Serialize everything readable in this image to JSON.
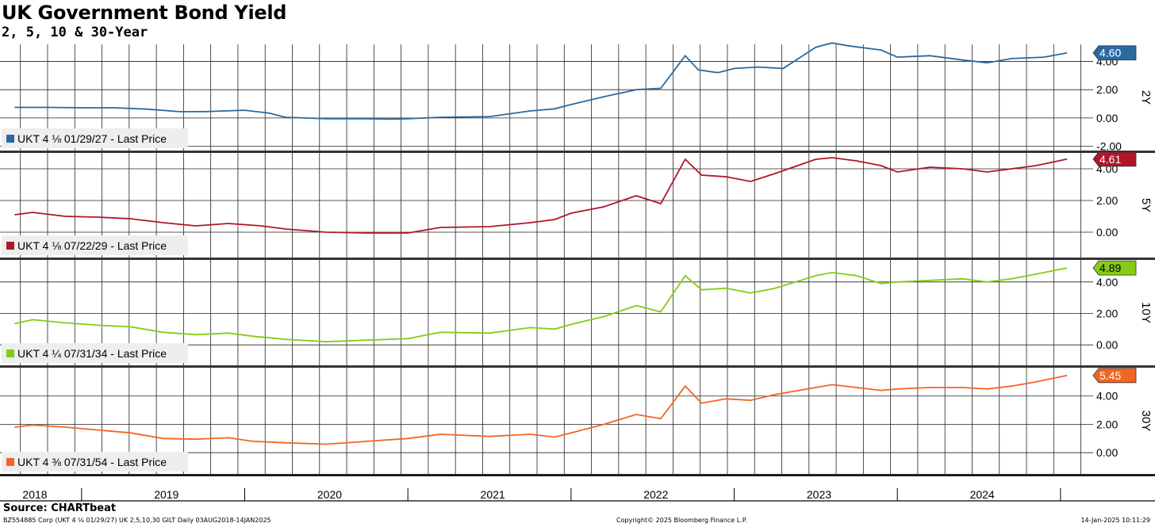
{
  "title": "UK Government Bond Yield",
  "subtitle": "2, 5, 10 & 30-Year",
  "source": "Source: CHARTbeat",
  "footer": {
    "left": "BZ554885 Corp (UKT 4 ⅛ 01/29/27) UK 2,5,10,30 GILT  Daily 03AUG2018-14JAN2025",
    "center": "Copyright© 2025 Bloomberg Finance L.P.",
    "right": "14-Jan-2025 10:11:29"
  },
  "chart_data": [
    {
      "type": "line",
      "tenor_label": "2Y",
      "legend": "UKT 4 ⅛ 01/29/27 - Last Price",
      "color": "#2a6aa0",
      "last_value": 4.6,
      "last_label": "4.60",
      "ylim": [
        -2.3,
        5.2
      ],
      "yticks": [
        -2.0,
        0.0,
        2.0,
        4.0
      ],
      "ytick_labels": [
        "-2.00",
        "0.00",
        "2.00",
        "4.00"
      ],
      "points": [
        [
          2018.59,
          0.75
        ],
        [
          2018.8,
          0.75
        ],
        [
          2019.0,
          0.72
        ],
        [
          2019.2,
          0.72
        ],
        [
          2019.4,
          0.63
        ],
        [
          2019.6,
          0.45
        ],
        [
          2019.75,
          0.45
        ],
        [
          2020.0,
          0.55
        ],
        [
          2020.15,
          0.35
        ],
        [
          2020.25,
          0.05
        ],
        [
          2020.5,
          -0.05
        ],
        [
          2020.75,
          -0.05
        ],
        [
          2020.9,
          -0.08
        ],
        [
          2021.0,
          -0.05
        ],
        [
          2021.2,
          0.05
        ],
        [
          2021.5,
          0.1
        ],
        [
          2021.75,
          0.5
        ],
        [
          2021.9,
          0.65
        ],
        [
          2022.0,
          0.95
        ],
        [
          2022.2,
          1.5
        ],
        [
          2022.4,
          2.0
        ],
        [
          2022.55,
          2.1
        ],
        [
          2022.7,
          4.4
        ],
        [
          2022.78,
          3.4
        ],
        [
          2022.9,
          3.2
        ],
        [
          2023.0,
          3.5
        ],
        [
          2023.15,
          3.6
        ],
        [
          2023.3,
          3.5
        ],
        [
          2023.5,
          5.0
        ],
        [
          2023.6,
          5.3
        ],
        [
          2023.7,
          5.1
        ],
        [
          2023.9,
          4.8
        ],
        [
          2024.0,
          4.3
        ],
        [
          2024.2,
          4.4
        ],
        [
          2024.4,
          4.1
        ],
        [
          2024.55,
          3.9
        ],
        [
          2024.7,
          4.2
        ],
        [
          2024.9,
          4.3
        ],
        [
          2025.04,
          4.6
        ]
      ]
    },
    {
      "type": "line",
      "tenor_label": "5Y",
      "legend": "UKT 4 ⅛ 07/22/29 - Last Price",
      "color": "#b0162a",
      "last_value": 4.61,
      "last_label": "4.61",
      "ylim": [
        -1.6,
        5.0
      ],
      "yticks": [
        0.0,
        2.0,
        4.0
      ],
      "ytick_labels": [
        "0.00",
        "2.00",
        "4.00"
      ],
      "points": [
        [
          2018.59,
          1.1
        ],
        [
          2018.7,
          1.25
        ],
        [
          2018.9,
          1.0
        ],
        [
          2019.1,
          0.95
        ],
        [
          2019.3,
          0.85
        ],
        [
          2019.5,
          0.6
        ],
        [
          2019.7,
          0.4
        ],
        [
          2019.9,
          0.55
        ],
        [
          2020.1,
          0.4
        ],
        [
          2020.25,
          0.2
        ],
        [
          2020.5,
          0.0
        ],
        [
          2020.75,
          -0.05
        ],
        [
          2021.0,
          -0.05
        ],
        [
          2021.2,
          0.3
        ],
        [
          2021.5,
          0.35
        ],
        [
          2021.75,
          0.6
        ],
        [
          2021.9,
          0.8
        ],
        [
          2022.0,
          1.2
        ],
        [
          2022.2,
          1.6
        ],
        [
          2022.4,
          2.3
        ],
        [
          2022.55,
          1.8
        ],
        [
          2022.7,
          4.6
        ],
        [
          2022.8,
          3.6
        ],
        [
          2022.95,
          3.5
        ],
        [
          2023.1,
          3.2
        ],
        [
          2023.25,
          3.7
        ],
        [
          2023.5,
          4.6
        ],
        [
          2023.6,
          4.7
        ],
        [
          2023.75,
          4.5
        ],
        [
          2023.9,
          4.2
        ],
        [
          2024.0,
          3.8
        ],
        [
          2024.2,
          4.1
        ],
        [
          2024.4,
          4.0
        ],
        [
          2024.55,
          3.8
        ],
        [
          2024.7,
          4.0
        ],
        [
          2024.85,
          4.2
        ],
        [
          2025.04,
          4.61
        ]
      ]
    },
    {
      "type": "line",
      "tenor_label": "10Y",
      "legend": "UKT 4 ¼ 07/31/34 - Last Price",
      "color": "#84cc16",
      "last_value": 4.89,
      "last_label": "4.89",
      "ylim": [
        -1.3,
        5.4
      ],
      "yticks": [
        0.0,
        2.0,
        4.0
      ],
      "ytick_labels": [
        "0.00",
        "2.00",
        "4.00"
      ],
      "points": [
        [
          2018.59,
          1.35
        ],
        [
          2018.7,
          1.6
        ],
        [
          2018.9,
          1.4
        ],
        [
          2019.1,
          1.25
        ],
        [
          2019.3,
          1.15
        ],
        [
          2019.5,
          0.8
        ],
        [
          2019.7,
          0.65
        ],
        [
          2019.9,
          0.75
        ],
        [
          2020.05,
          0.55
        ],
        [
          2020.25,
          0.35
        ],
        [
          2020.5,
          0.2
        ],
        [
          2020.75,
          0.3
        ],
        [
          2021.0,
          0.4
        ],
        [
          2021.2,
          0.8
        ],
        [
          2021.5,
          0.75
        ],
        [
          2021.75,
          1.1
        ],
        [
          2021.9,
          1.0
        ],
        [
          2022.0,
          1.3
        ],
        [
          2022.2,
          1.8
        ],
        [
          2022.4,
          2.5
        ],
        [
          2022.55,
          2.1
        ],
        [
          2022.7,
          4.4
        ],
        [
          2022.8,
          3.5
        ],
        [
          2022.95,
          3.6
        ],
        [
          2023.1,
          3.3
        ],
        [
          2023.25,
          3.6
        ],
        [
          2023.5,
          4.4
        ],
        [
          2023.6,
          4.6
        ],
        [
          2023.75,
          4.4
        ],
        [
          2023.9,
          3.9
        ],
        [
          2024.0,
          4.0
        ],
        [
          2024.2,
          4.1
        ],
        [
          2024.4,
          4.2
        ],
        [
          2024.55,
          4.0
        ],
        [
          2024.7,
          4.2
        ],
        [
          2024.85,
          4.5
        ],
        [
          2025.04,
          4.89
        ]
      ]
    },
    {
      "type": "line",
      "tenor_label": "30Y",
      "legend": "UKT 4 ⅜ 07/31/54 - Last Price",
      "color": "#f26522",
      "last_value": 5.45,
      "last_label": "5.45",
      "ylim": [
        -1.5,
        6.0
      ],
      "yticks": [
        0.0,
        2.0,
        4.0
      ],
      "ytick_labels": [
        "0.00",
        "2.00",
        "4.00"
      ],
      "points": [
        [
          2018.59,
          1.8
        ],
        [
          2018.7,
          1.95
        ],
        [
          2018.9,
          1.8
        ],
        [
          2019.1,
          1.6
        ],
        [
          2019.3,
          1.4
        ],
        [
          2019.5,
          1.0
        ],
        [
          2019.7,
          0.95
        ],
        [
          2019.9,
          1.05
        ],
        [
          2020.05,
          0.8
        ],
        [
          2020.25,
          0.7
        ],
        [
          2020.5,
          0.6
        ],
        [
          2020.75,
          0.8
        ],
        [
          2021.0,
          1.0
        ],
        [
          2021.2,
          1.3
        ],
        [
          2021.5,
          1.15
        ],
        [
          2021.75,
          1.3
        ],
        [
          2021.9,
          1.1
        ],
        [
          2022.0,
          1.4
        ],
        [
          2022.2,
          2.0
        ],
        [
          2022.4,
          2.7
        ],
        [
          2022.55,
          2.4
        ],
        [
          2022.7,
          4.7
        ],
        [
          2022.8,
          3.5
        ],
        [
          2022.95,
          3.8
        ],
        [
          2023.1,
          3.7
        ],
        [
          2023.25,
          4.1
        ],
        [
          2023.5,
          4.6
        ],
        [
          2023.6,
          4.8
        ],
        [
          2023.75,
          4.6
        ],
        [
          2023.9,
          4.4
        ],
        [
          2024.0,
          4.5
        ],
        [
          2024.2,
          4.6
        ],
        [
          2024.4,
          4.6
        ],
        [
          2024.55,
          4.5
        ],
        [
          2024.7,
          4.7
        ],
        [
          2024.85,
          5.0
        ],
        [
          2025.04,
          5.45
        ]
      ]
    }
  ],
  "x_axis": {
    "labels": [
      {
        "label": "2018",
        "at": 2018.5
      },
      {
        "label": "2019",
        "at": 2019.5
      },
      {
        "label": "2020",
        "at": 2020.5
      },
      {
        "label": "2021",
        "at": 2021.5
      },
      {
        "label": "2022",
        "at": 2022.5
      },
      {
        "label": "2023",
        "at": 2023.5
      },
      {
        "label": "2024",
        "at": 2024.5
      }
    ],
    "year_boundaries": [
      2019.0,
      2020.0,
      2021.0,
      2022.0,
      2023.0,
      2024.0,
      2025.0
    ],
    "xlim": [
      2018.5,
      2025.2
    ]
  }
}
